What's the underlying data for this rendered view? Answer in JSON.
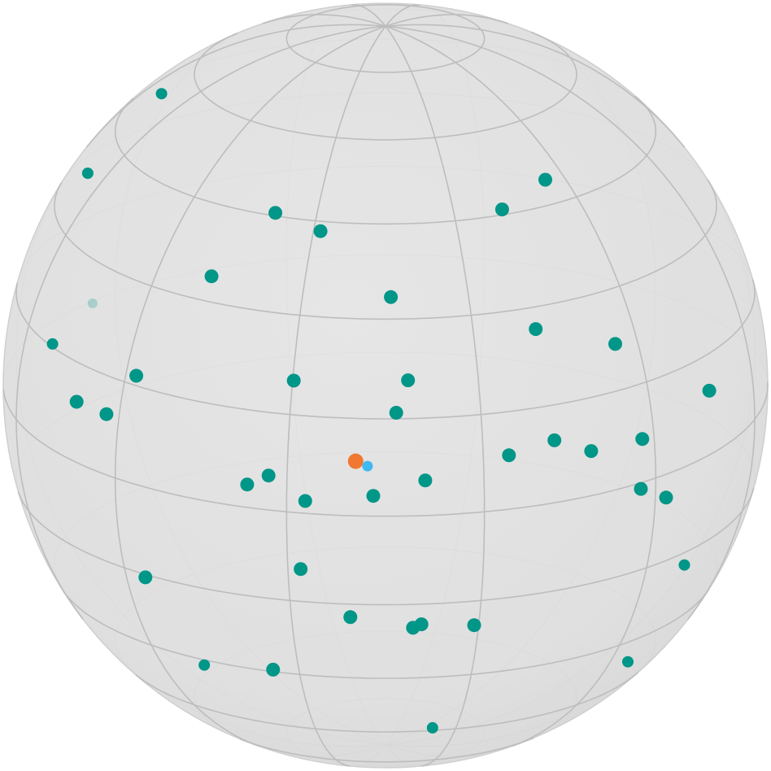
{
  "chart_data": {
    "type": "scatter",
    "title": "",
    "projection": "orthographic-sphere",
    "grid": true,
    "colors": {
      "sphere_fill": "#dedede",
      "sphere_edge": "#cfcfcf",
      "grid_front": "#bdbdbd",
      "grid_back": "#d0d0d0",
      "points": "#009688",
      "highlight_primary": "#f07830",
      "highlight_secondary": "#40b8f0"
    },
    "series": [
      {
        "name": "points",
        "color": "#009688",
        "points": [
          {
            "x": -0.779,
            "y": 0.622,
            "z": 0.085
          },
          {
            "x": -0.586,
            "y": 0.625,
            "z": -0.515
          },
          {
            "x": -0.288,
            "y": 0.713,
            "z": 0.638
          },
          {
            "x": -0.17,
            "y": 0.687,
            "z": 0.707
          },
          {
            "x": 0.305,
            "y": 0.718,
            "z": 0.626
          },
          {
            "x": 0.418,
            "y": 0.756,
            "z": 0.503
          },
          {
            "x": -0.455,
            "y": 0.557,
            "z": 0.695
          },
          {
            "x": 0.014,
            "y": 0.55,
            "z": 0.835
          },
          {
            "x": 0.393,
            "y": 0.449,
            "z": 0.802
          },
          {
            "x": 0.601,
            "y": 0.373,
            "z": 0.707
          },
          {
            "x": 0.059,
            "y": 0.354,
            "z": 0.933
          },
          {
            "x": -0.24,
            "y": 0.344,
            "z": 0.908
          },
          {
            "x": 0.028,
            "y": 0.274,
            "z": 0.961
          },
          {
            "x": -0.652,
            "y": 0.283,
            "z": 0.703
          },
          {
            "x": -0.871,
            "y": 0.266,
            "z": 0.413
          },
          {
            "x": -0.808,
            "y": 0.161,
            "z": 0.567
          },
          {
            "x": -0.73,
            "y": 0.162,
            "z": 0.664
          },
          {
            "x": 0.323,
            "y": 0.146,
            "z": 0.935
          },
          {
            "x": 0.442,
            "y": 0.168,
            "z": 0.881
          },
          {
            "x": 0.538,
            "y": 0.121,
            "z": 0.834
          },
          {
            "x": 0.672,
            "y": 0.117,
            "z": 0.731
          },
          {
            "x": 0.847,
            "y": 0.169,
            "z": 0.504
          },
          {
            "x": -0.362,
            "y": 0.063,
            "z": 0.93
          },
          {
            "x": -0.306,
            "y": 0.094,
            "z": 0.947
          },
          {
            "x": 0.104,
            "y": 0.096,
            "z": 0.99
          },
          {
            "x": -0.032,
            "y": 0.056,
            "z": 0.998
          },
          {
            "x": -0.21,
            "y": 0.034,
            "z": 0.977
          },
          {
            "x": 0.734,
            "y": -0.066,
            "z": 0.676
          },
          {
            "x": 0.668,
            "y": -0.017,
            "z": 0.744
          },
          {
            "x": -0.222,
            "y": -0.161,
            "z": 0.962
          },
          {
            "x": 0.782,
            "y": -0.301,
            "z": 0.546
          },
          {
            "x": -0.628,
            "y": -0.268,
            "z": 0.731
          },
          {
            "x": -0.092,
            "y": -0.299,
            "z": 0.95
          },
          {
            "x": 0.072,
            "y": -0.332,
            "z": 0.941
          },
          {
            "x": 0.094,
            "y": -0.322,
            "z": 0.942
          },
          {
            "x": 0.232,
            "y": -0.335,
            "z": 0.913
          },
          {
            "x": -0.474,
            "y": -0.519,
            "z": 0.712
          },
          {
            "x": -0.294,
            "y": -0.493,
            "z": 0.819
          },
          {
            "x": 0.634,
            "y": -0.585,
            "z": 0.506
          },
          {
            "x": 0.123,
            "y": -0.695,
            "z": 0.709
          }
        ]
      },
      {
        "name": "highlight-primary",
        "color": "#f07830",
        "points": [
          {
            "x": -0.078,
            "y": 0.148,
            "z": 0.986
          }
        ]
      },
      {
        "name": "highlight-secondary",
        "color": "#40b8f0",
        "points": [
          {
            "x": -0.047,
            "y": 0.136,
            "z": 0.99
          }
        ]
      }
    ]
  }
}
